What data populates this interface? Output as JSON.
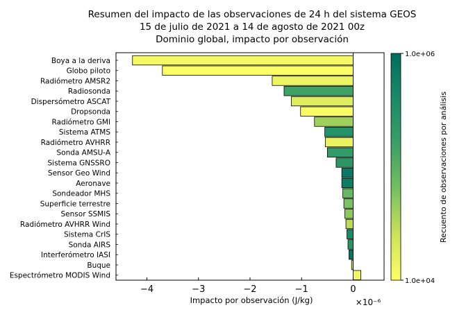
{
  "chart_data": {
    "type": "bar",
    "orientation": "horizontal",
    "title_lines": [
      "Resumen del impacto de las observaciones de 24 h del sistema GEOS",
      "15 de julio de 2021 a 14 de agosto de 2021 00z",
      "Dominio global, impacto por observación"
    ],
    "xlabel": "Impacto por observación (J/kg)",
    "x_multiplier_label": "×10⁻⁶",
    "xlim": [
      -4.6,
      0.6
    ],
    "xticks": [
      -4,
      -3,
      -2,
      -1,
      0
    ],
    "xtick_labels": [
      "−4",
      "−3",
      "−2",
      "−1",
      "0"
    ],
    "colorbar": {
      "label": "Recuento de observaciones por análisis",
      "max_label": "1.0e+06",
      "min_label": "1.0e+04",
      "scale": "log",
      "range": [
        10000,
        1000000
      ],
      "colormap": [
        "#ffff66",
        "#cce35a",
        "#76c060",
        "#3aa066",
        "#1b8a67",
        "#006d5f"
      ]
    },
    "categories": [
      "Boya a la deriva",
      "Globo piloto",
      "Radiómetro AMSR2",
      "Radiosonda",
      "Dispersómetro ASCAT",
      "Dropsonda",
      "Radiómetro GMI",
      "Sistema ATMS",
      "Radiómetro AVHRR",
      "Sonda AMSU-A",
      "Sistema GNSSRO",
      "Sensor Geo Wind",
      "Aeronave",
      "Sondeador MHS",
      "Superficie terrestre",
      "Sensor SSMIS",
      "Radiómetro AVHRR Wind",
      "Sistema CrIS",
      "Sonda AIRS",
      "Interferómetro IASI",
      "Buque",
      "Espectrómetro MODIS Wind"
    ],
    "values": [
      -4.28,
      -3.7,
      -1.57,
      -1.34,
      -1.2,
      -1.02,
      -0.75,
      -0.55,
      -0.54,
      -0.5,
      -0.33,
      -0.22,
      -0.22,
      -0.2,
      -0.18,
      -0.16,
      -0.14,
      -0.12,
      -0.1,
      -0.08,
      -0.03,
      0.15
    ],
    "counts": [
      12000,
      10500,
      14000,
      150000,
      18000,
      11000,
      40000,
      300000,
      15000,
      200000,
      250000,
      700000,
      600000,
      80000,
      60000,
      50000,
      30000,
      400000,
      250000,
      800000,
      20000,
      13000
    ]
  }
}
